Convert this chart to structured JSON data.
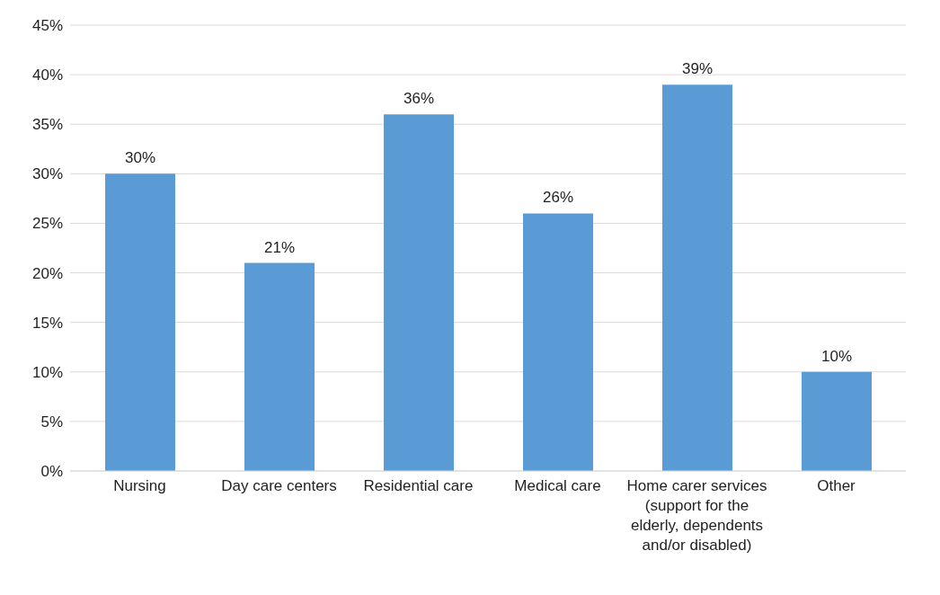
{
  "chart_data": {
    "type": "bar",
    "categories": [
      "Nursing",
      "Day care centers",
      "Residential care",
      "Medical care",
      "Home carer services (support for the elderly, dependents and/or disabled)",
      "Other"
    ],
    "values": [
      30,
      21,
      36,
      26,
      39,
      10
    ],
    "value_labels": [
      "30%",
      "21%",
      "36%",
      "26%",
      "39%",
      "10%"
    ],
    "color": "#5b9bd5",
    "ylim": [
      0,
      45
    ],
    "yticks": [
      {
        "value": 0,
        "label": "0%"
      },
      {
        "value": 5,
        "label": "5%"
      },
      {
        "value": 10,
        "label": "10%"
      },
      {
        "value": 15,
        "label": "15%"
      },
      {
        "value": 20,
        "label": "20%"
      },
      {
        "value": 25,
        "label": "25%"
      },
      {
        "value": 30,
        "label": "30%"
      },
      {
        "value": 35,
        "label": "35%"
      },
      {
        "value": 40,
        "label": "40%"
      },
      {
        "value": 45,
        "label": "45%"
      }
    ],
    "grid": "y"
  }
}
